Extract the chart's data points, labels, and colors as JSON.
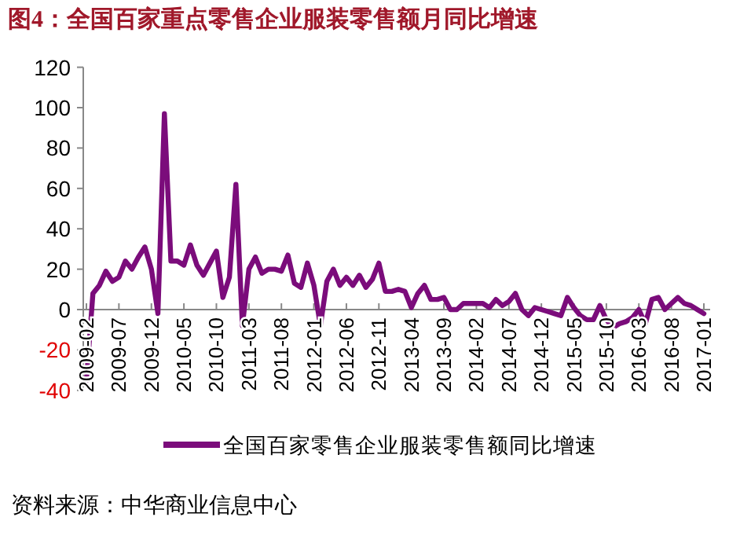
{
  "chart_data": {
    "type": "line",
    "title": "图4：全国百家重点零售企业服装零售额月同比增速",
    "annotations": [
      "资料来源：中华商业信息中心"
    ],
    "categories": [
      "2009-02",
      null,
      null,
      null,
      null,
      "2009-07",
      null,
      null,
      null,
      null,
      "2009-12",
      null,
      null,
      null,
      null,
      "2010-05",
      null,
      null,
      null,
      null,
      "2010-10",
      null,
      null,
      null,
      null,
      "2011-03",
      null,
      null,
      null,
      null,
      "2011-08",
      null,
      null,
      null,
      null,
      "2012-01",
      null,
      null,
      null,
      null,
      "2012-06",
      null,
      null,
      null,
      null,
      "2012-11",
      null,
      null,
      null,
      null,
      "2013-04",
      null,
      null,
      null,
      null,
      "2013-09",
      null,
      null,
      null,
      null,
      "2014-02",
      null,
      null,
      null,
      null,
      "2014-07",
      null,
      null,
      null,
      null,
      "2014-12",
      null,
      null,
      null,
      null,
      "2015-05",
      null,
      null,
      null,
      null,
      "2015-10",
      null,
      null,
      null,
      null,
      "2016-03",
      null,
      null,
      null,
      null,
      "2016-08",
      null,
      null,
      null,
      null,
      "2017-01"
    ],
    "series": [
      {
        "name": "全国百家零售企业服装零售额同比增速",
        "color": "#7b0c7b",
        "values": [
          -35,
          8,
          12,
          19,
          14,
          16,
          24,
          20,
          26,
          31,
          20,
          -2,
          97,
          24,
          24,
          22,
          32,
          22,
          17,
          23,
          29,
          6,
          16,
          62,
          -8,
          20,
          26,
          18,
          20,
          20,
          19,
          27,
          13,
          11,
          23,
          12,
          -8,
          14,
          20,
          12,
          16,
          12,
          17,
          11,
          15,
          23,
          9,
          9,
          10,
          9,
          1,
          8,
          12,
          5,
          5,
          6,
          0,
          0,
          3,
          3,
          3,
          3,
          1,
          5,
          2,
          4,
          8,
          0,
          -3,
          1,
          0,
          -1,
          -2,
          -3,
          6,
          1,
          -3,
          -5,
          -5,
          2,
          -5,
          -9,
          -7,
          -6,
          -4,
          0,
          -7,
          5,
          6,
          0,
          3,
          6,
          3,
          2,
          0,
          -2
        ]
      }
    ],
    "ylim": [
      -40,
      120
    ],
    "yticks": [
      -40,
      -20,
      0,
      20,
      40,
      60,
      80,
      100,
      120
    ],
    "legend": "bottom"
  }
}
